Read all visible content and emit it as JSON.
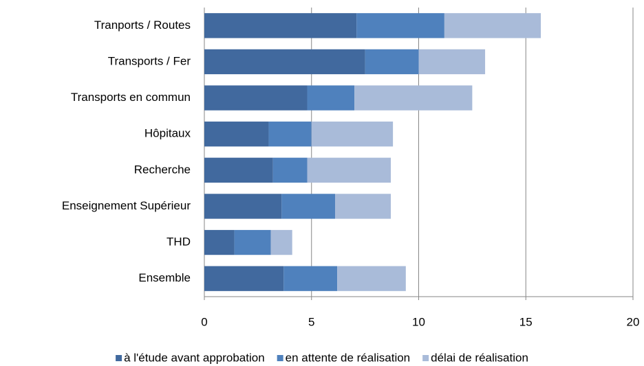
{
  "chart_data": {
    "type": "stacked-barh",
    "categories": [
      "Tranports / Routes",
      "Transports / Fer",
      "Transports en commun",
      "Hôpitaux",
      "Recherche",
      "Enseignement Supérieur",
      "THD",
      "Ensemble"
    ],
    "series": [
      {
        "name": "à l'étude avant approbation",
        "color": "#41699e",
        "values": [
          7.1,
          7.5,
          4.8,
          3.0,
          3.2,
          3.6,
          1.4,
          3.7
        ]
      },
      {
        "name": "en attente de réalisation",
        "color": "#4f81bd",
        "values": [
          4.1,
          2.5,
          2.2,
          2.0,
          1.6,
          2.5,
          1.7,
          2.5
        ]
      },
      {
        "name": "délai de réalisation",
        "color": "#a9bbd9",
        "values": [
          4.5,
          3.1,
          5.5,
          3.8,
          3.9,
          2.6,
          1.0,
          3.2
        ]
      }
    ],
    "xlim": [
      0,
      20
    ],
    "xticks": [
      0,
      5,
      10,
      15,
      20
    ],
    "grid": true,
    "legend": "bottom"
  }
}
